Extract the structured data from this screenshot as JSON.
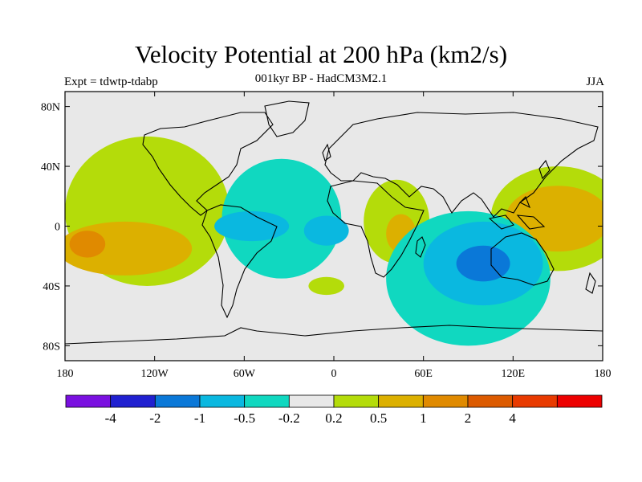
{
  "header": {
    "title": "Velocity Potential at 200 hPa (km2/s)",
    "subtitle": "001kyr BP - HadCM3M2.1",
    "left_label": "Expt = tdwtp-tdabp",
    "right_label": "JJA"
  },
  "chart_data": {
    "type": "heatmap",
    "projection": "cylindrical-equidistant",
    "xlim": [
      -180,
      180
    ],
    "ylim": [
      -90,
      90
    ],
    "x_ticks": [
      -180,
      -120,
      -60,
      0,
      60,
      120,
      180
    ],
    "x_tick_labels": [
      "180",
      "120W",
      "60W",
      "0",
      "60E",
      "120E",
      "180"
    ],
    "y_ticks": [
      80,
      40,
      0,
      -40,
      -80
    ],
    "y_tick_labels": [
      "80N",
      "40N",
      "0",
      "40S",
      "80S"
    ],
    "colorbar": {
      "colors": [
        "#7a10e0",
        "#2020d0",
        "#0a78d8",
        "#0ab8e0",
        "#10d8c0",
        "#e8e8e8",
        "#b4dc0a",
        "#dcb000",
        "#e08a00",
        "#dc5a00",
        "#e83a00",
        "#ec0000"
      ],
      "labels": [
        "-4",
        "-2",
        "-1",
        "-0.5",
        "-0.2",
        "0.2",
        "0.5",
        "1",
        "2",
        "4"
      ]
    },
    "regions": [
      {
        "value_level": 0.2,
        "lon": -125,
        "lat": 10,
        "rx": 55,
        "ry": 50,
        "color": "#b4dc0a"
      },
      {
        "value_level": 0.2,
        "lon": 150,
        "lat": 5,
        "rx": 45,
        "ry": 35,
        "color": "#b4dc0a"
      },
      {
        "value_level": 0.2,
        "lon": 42,
        "lat": 3,
        "rx": 22,
        "ry": 28,
        "color": "#b4dc0a"
      },
      {
        "value_level": 0.2,
        "lon": -5,
        "lat": -40,
        "rx": 12,
        "ry": 6,
        "color": "#b4dc0a"
      },
      {
        "value_level": 0.5,
        "lon": -140,
        "lat": -15,
        "rx": 45,
        "ry": 18,
        "color": "#dcb000"
      },
      {
        "value_level": 0.5,
        "lon": 150,
        "lat": 5,
        "rx": 35,
        "ry": 22,
        "color": "#dcb000"
      },
      {
        "value_level": 0.5,
        "lon": 45,
        "lat": -5,
        "rx": 10,
        "ry": 13,
        "color": "#dcb000"
      },
      {
        "value_level": 1,
        "lon": -165,
        "lat": -12,
        "rx": 12,
        "ry": 9,
        "color": "#e08a00"
      },
      {
        "value_level": -0.2,
        "lon": -35,
        "lat": 5,
        "rx": 40,
        "ry": 40,
        "color": "#10d8c0"
      },
      {
        "value_level": -0.2,
        "lon": 90,
        "lat": -35,
        "rx": 55,
        "ry": 45,
        "color": "#10d8c0"
      },
      {
        "value_level": -0.5,
        "lon": -55,
        "lat": 0,
        "rx": 25,
        "ry": 10,
        "color": "#0ab8e0"
      },
      {
        "value_level": -0.5,
        "lon": -5,
        "lat": -3,
        "rx": 15,
        "ry": 10,
        "color": "#0ab8e0"
      },
      {
        "value_level": -0.5,
        "lon": 100,
        "lat": -25,
        "rx": 40,
        "ry": 28,
        "color": "#0ab8e0"
      },
      {
        "value_level": -1,
        "lon": 100,
        "lat": -25,
        "rx": 18,
        "ry": 12,
        "color": "#0a78d8"
      }
    ]
  }
}
